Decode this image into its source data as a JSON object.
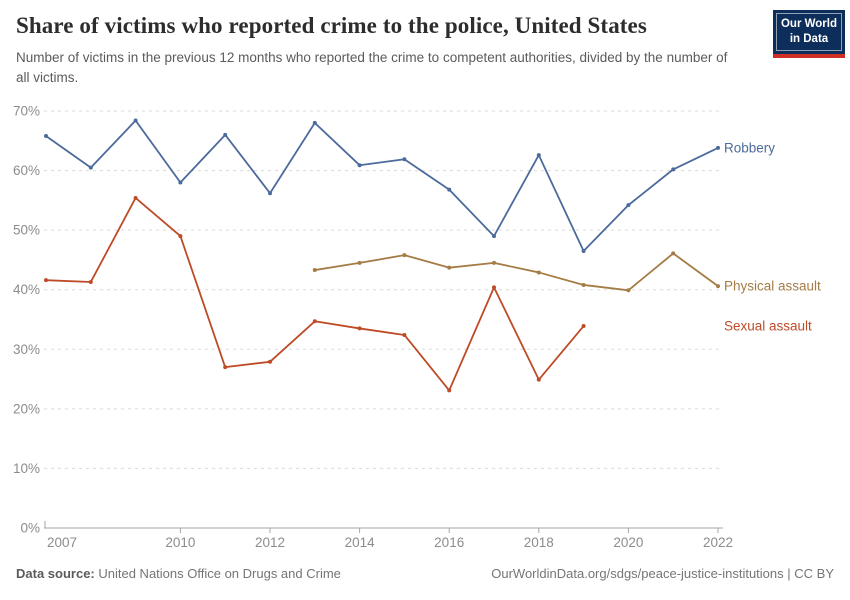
{
  "header": {
    "title": "Share of victims who reported crime to the police, United States",
    "subtitle": "Number of victims in the previous 12 months who reported the crime to competent authorities, divided by the number of all victims.",
    "logo": {
      "line1": "Our World",
      "line2": "in Data",
      "bg_color": "#0d2e5b",
      "stripe_color": "#ce2e24"
    }
  },
  "chart_data": {
    "type": "line",
    "title": "Share of victims who reported crime to the police, United States",
    "subtitle": "Number of victims in the previous 12 months who reported the crime to competent authorities, divided by the number of all victims.",
    "unit": "%",
    "xlabel": "",
    "ylabel": "",
    "xlim": [
      2007,
      2022
    ],
    "ylim": [
      0,
      70
    ],
    "yticks": [
      0,
      10,
      20,
      30,
      40,
      50,
      60,
      70
    ],
    "ytick_suffix": "%",
    "xticks": [
      2007,
      2010,
      2012,
      2014,
      2016,
      2018,
      2020,
      2022
    ],
    "grid": "horizontal-dashed",
    "legend_position": "right-of-line-ends",
    "series": [
      {
        "name": "Robbery",
        "color": "#4C6A9C",
        "x": [
          2007,
          2008,
          2009,
          2010,
          2011,
          2012,
          2013,
          2014,
          2015,
          2016,
          2017,
          2018,
          2019,
          2020,
          2021,
          2022
        ],
        "values": [
          65.8,
          60.5,
          68.4,
          58.0,
          66.0,
          56.2,
          68.0,
          60.9,
          61.9,
          56.8,
          49.0,
          62.6,
          46.5,
          54.2,
          60.2,
          63.8
        ]
      },
      {
        "name": "Physical assault",
        "color": "#A57C45",
        "x": [
          2013,
          2014,
          2015,
          2016,
          2017,
          2018,
          2019,
          2020,
          2021,
          2022
        ],
        "values": [
          43.3,
          44.5,
          45.8,
          43.7,
          44.5,
          42.9,
          40.8,
          39.9,
          46.1,
          40.6
        ]
      },
      {
        "name": "Sexual assault",
        "color": "#BE4B27",
        "x": [
          2007,
          2008,
          2009,
          2010,
          2011,
          2012,
          2013,
          2014,
          2015,
          2016,
          2017,
          2018,
          2019
        ],
        "values": [
          41.6,
          41.3,
          55.4,
          49.0,
          27.0,
          27.9,
          34.7,
          33.5,
          32.4,
          23.1,
          40.4,
          24.9,
          33.9
        ]
      }
    ]
  },
  "footer": {
    "datasource_label": "Data source:",
    "datasource_value": " United Nations Office on Drugs and Crime",
    "url": "OurWorldinData.org/sdgs/peace-justice-institutions",
    "separator": " | ",
    "license": "CC BY"
  }
}
